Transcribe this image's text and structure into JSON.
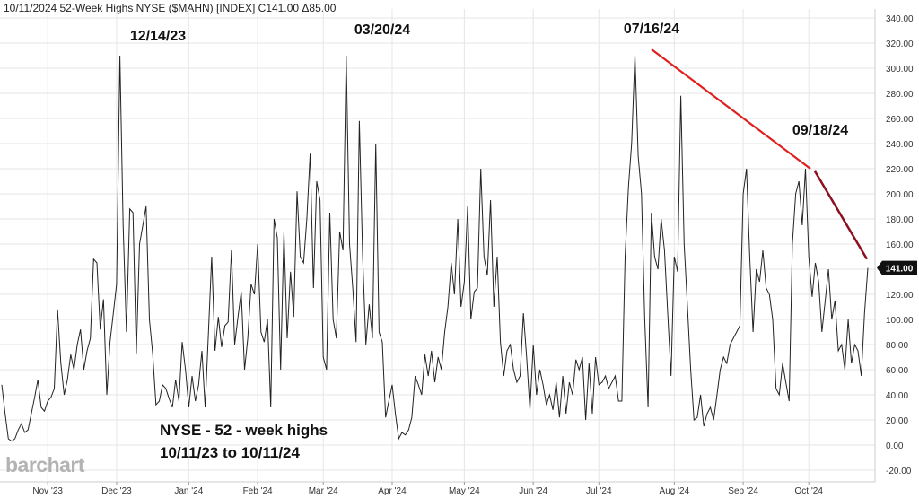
{
  "header": {
    "title": "10/11/2024 52-Week Highs NYSE ($MAHN) [INDEX] C141.00 Δ85.00"
  },
  "brand": "barchart",
  "annotation": {
    "line1": "NYSE - 52 - week highs",
    "line2": "10/11/23 to 10/11/24"
  },
  "peaks": [
    "12/14/23",
    "03/20/24",
    "07/16/24",
    "09/18/24"
  ],
  "last_value_label": "141.00",
  "colors": {
    "series": "#222222",
    "trend1": "#e02020",
    "trend2": "#8b1020",
    "badge": "#111111",
    "grid": "#e6e6e6"
  },
  "chart_data": {
    "type": "line",
    "title": "52-Week Highs NYSE ($MAHN)",
    "ylim": [
      -20,
      340
    ],
    "y_ticks": [
      "-20.00",
      "0.00",
      "20.00",
      "40.00",
      "60.00",
      "80.00",
      "100.00",
      "120.00",
      "140.00",
      "160.00",
      "180.00",
      "200.00",
      "220.00",
      "240.00",
      "260.00",
      "280.00",
      "300.00",
      "320.00",
      "340.00"
    ],
    "x_ticks": [
      "Nov '23",
      "Dec '23",
      "Jan '24",
      "Feb '24",
      "Mar '24",
      "Apr '24",
      "May '24",
      "Jun '24",
      "Jul '24",
      "Aug '24",
      "Sep '24",
      "Oct '24"
    ],
    "grid": true,
    "series": [
      {
        "values": [
          48,
          25,
          5,
          3,
          5,
          12,
          17,
          10,
          12,
          25,
          38,
          52,
          30,
          27,
          35,
          38,
          45,
          108,
          65,
          40,
          52,
          72,
          60,
          80,
          92,
          60,
          75,
          85,
          148,
          145,
          92,
          116,
          40,
          82,
          105,
          128,
          310,
          175,
          90,
          188,
          185,
          73,
          160,
          175,
          190,
          100,
          73,
          32,
          35,
          48,
          45,
          37,
          30,
          52,
          35,
          82,
          60,
          30,
          55,
          35,
          48,
          75,
          30,
          90,
          150,
          75,
          102,
          78,
          95,
          98,
          155,
          80,
          102,
          122,
          60,
          85,
          128,
          120,
          160,
          90,
          82,
          100,
          30,
          180,
          165,
          60,
          170,
          85,
          138,
          102,
          202,
          150,
          145,
          180,
          232,
          125,
          210,
          195,
          70,
          60,
          185,
          100,
          85,
          170,
          155,
          310,
          160,
          125,
          82,
          258,
          150,
          80,
          112,
          85,
          240,
          90,
          82,
          22,
          35,
          48,
          25,
          5,
          10,
          8,
          12,
          22,
          55,
          48,
          40,
          72,
          55,
          75,
          50,
          70,
          60,
          90,
          110,
          145,
          120,
          180,
          110,
          130,
          190,
          100,
          122,
          125,
          220,
          150,
          135,
          195,
          110,
          150,
          82,
          55,
          75,
          80,
          60,
          50,
          55,
          105,
          70,
          28,
          80,
          40,
          60,
          48,
          32,
          40,
          28,
          50,
          22,
          55,
          25,
          50,
          40,
          68,
          60,
          70,
          20,
          65,
          25,
          70,
          48,
          50,
          55,
          45,
          50,
          55,
          35,
          35,
          150,
          205,
          240,
          311,
          230,
          200,
          100,
          30,
          185,
          150,
          140,
          180,
          155,
          105,
          55,
          150,
          138,
          278,
          160,
          110,
          60,
          20,
          22,
          40,
          15,
          25,
          30,
          20,
          40,
          60,
          70,
          65,
          80,
          85,
          90,
          95,
          200,
          220,
          150,
          90,
          140,
          130,
          155,
          125,
          120,
          100,
          45,
          40,
          65,
          50,
          35,
          160,
          200,
          210,
          175,
          220,
          150,
          118,
          145,
          130,
          90,
          115,
          140,
          100,
          115,
          75,
          80,
          60,
          100,
          65,
          80,
          75,
          55,
          105,
          141
        ]
      }
    ]
  }
}
